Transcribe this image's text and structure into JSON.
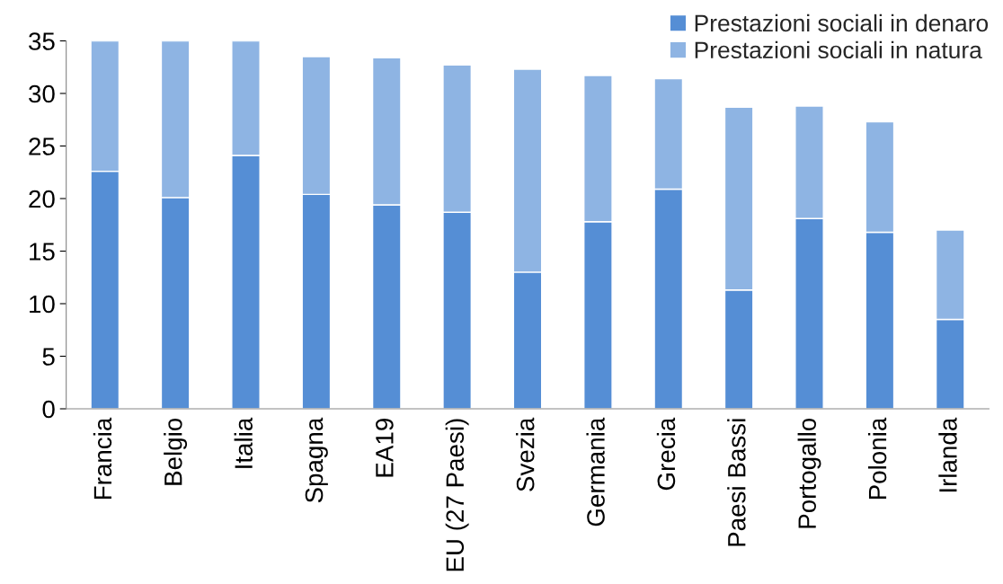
{
  "chart_data": {
    "type": "bar",
    "stacked": true,
    "categories": [
      "Francia",
      "Belgio",
      "Italia",
      "Spagna",
      "EA19",
      "EU (27 Paesi)",
      "Svezia",
      "Germania",
      "Grecia",
      "Paesi Bassi",
      "Portogallo",
      "Polonia",
      "Irlanda"
    ],
    "series": [
      {
        "name": "Prestazioni sociali in denaro",
        "color": "#558ed5",
        "values": [
          22.6,
          20.1,
          24.1,
          20.4,
          19.4,
          18.7,
          13.0,
          17.8,
          20.9,
          11.3,
          18.1,
          16.8,
          8.5
        ]
      },
      {
        "name": "Prestazioni sociali in natura",
        "color": "#8eb4e3",
        "values": [
          12.4,
          14.9,
          10.9,
          13.1,
          14.0,
          14.0,
          19.3,
          13.9,
          10.5,
          17.4,
          10.7,
          10.5,
          8.5
        ]
      }
    ],
    "ylim": [
      0,
      35
    ],
    "yticks": [
      0,
      5,
      10,
      15,
      20,
      25,
      30,
      35
    ],
    "grid": false,
    "legend": "top right"
  }
}
